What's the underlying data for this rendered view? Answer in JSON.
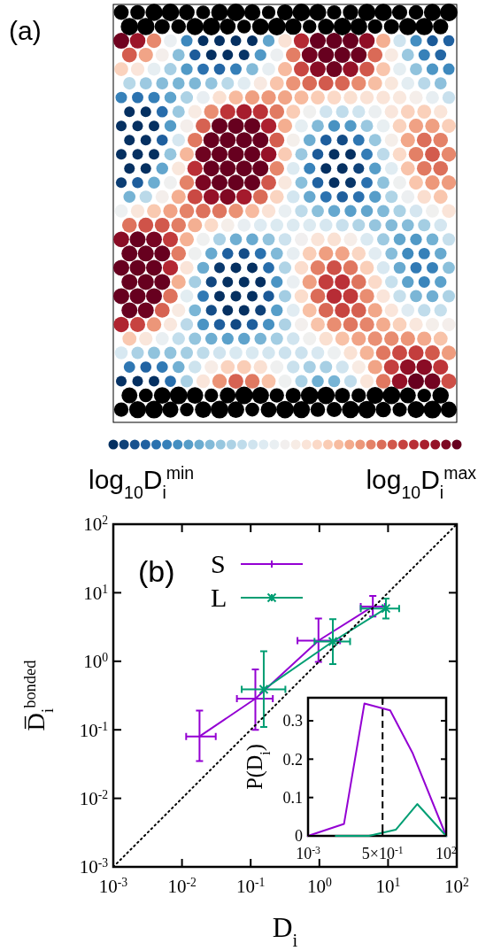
{
  "chart_data": [
    {
      "type": "other",
      "annotations": [
        "(a)",
        "log$_{10}$D$_{i}$$^{min}$",
        "log$_{10}$D$_{i}$$^{max}$"
      ]
    },
    {
      "type": "line",
      "xlabel": "D$_{i}$",
      "ylabel": "D̅$_{i}$$^{bonded}$",
      "log": "xy",
      "xlim": [
        0.001,
        100
      ],
      "ylim": [
        0.001,
        100
      ],
      "xticks": [
        {
          "value": 0.001,
          "label": "10$^{-3}$"
        },
        {
          "value": 0.01,
          "label": "10$^{-2}$"
        },
        {
          "value": 0.1,
          "label": "10$^{-1}$"
        },
        {
          "value": 1,
          "label": "10$^{0}$"
        },
        {
          "value": 10,
          "label": "10$^{1}$"
        },
        {
          "value": 100,
          "label": "10$^{2}$"
        }
      ],
      "yticks": [
        {
          "value": 0.001,
          "label": "10$^{-3}$"
        },
        {
          "value": 0.01,
          "label": "10$^{-2}$"
        },
        {
          "value": 0.1,
          "label": "10$^{-1}$"
        },
        {
          "value": 1,
          "label": "10$^{0}$"
        },
        {
          "value": 10,
          "label": "10$^{1}$"
        },
        {
          "value": 100,
          "label": "10$^{2}$"
        }
      ],
      "legend": "top left",
      "annotations": [
        "(b)"
      ],
      "series": [
        {
          "name": "S",
          "color": "#9400d3",
          "marker": "none",
          "x": [
            0.018,
            0.117,
            0.97,
            6.0
          ],
          "values": [
            0.08,
            0.285,
            2.0,
            6.3
          ],
          "errors": [
            [
              0.035,
              0.19
            ],
            [
              0.1,
              0.76
            ],
            [
              0.98,
              4.2
            ],
            [
              4.5,
              9.0
            ]
          ],
          "xerrors": [
            [
              0.0115,
              0.031
            ],
            [
              0.063,
              0.21
            ],
            [
              0.48,
              2.0
            ],
            [
              4.0,
              9.0
            ]
          ]
        },
        {
          "name": "L",
          "color": "#009e73",
          "marker": "cross",
          "x": [
            0.155,
            1.57,
            9.3
          ],
          "values": [
            0.39,
            1.94,
            5.9
          ],
          "errors": [
            [
              0.11,
              1.4
            ],
            [
              0.91,
              4.1
            ],
            [
              4.2,
              8.2
            ]
          ],
          "xerrors": [
            [
              0.074,
              0.32
            ],
            [
              0.85,
              2.8
            ],
            [
              4.0,
              14.5
            ]
          ]
        },
        {
          "type": "line",
          "color": "#000000",
          "line_style": "dotted",
          "marker": "none",
          "x": [
            0.001,
            100
          ],
          "values": [
            0.001,
            100
          ]
        }
      ]
    },
    {
      "type": "line",
      "ylabel": "P(D$_{i}$)",
      "log": "x",
      "xlim": [
        0.001,
        100
      ],
      "ylim": [
        0,
        0.36
      ],
      "xticks": [
        {
          "value": 0.001,
          "label": "10$^{-3}$"
        },
        {
          "value": 0.5,
          "label": "5×10$^{-1}$"
        },
        {
          "value": 100,
          "label": "10$^{2}$"
        }
      ],
      "yticks": [
        0,
        0.1,
        0.2,
        0.3
      ],
      "legend": false,
      "ref_lines": [
        {
          "axis": "x",
          "value": 0.5,
          "color": "#000000",
          "line_style": "dashed"
        }
      ],
      "series": [
        {
          "color": "#9400d3",
          "marker": "none",
          "x": [
            0.001,
            0.02,
            0.11,
            0.94,
            6.0,
            100
          ],
          "values": [
            0,
            0.031,
            0.345,
            0.327,
            0.217,
            0
          ]
        },
        {
          "color": "#009e73",
          "marker": "none",
          "x": [
            0.01,
            0.16,
            1.5,
            9,
            100
          ],
          "values": [
            0,
            0,
            0.016,
            0.083,
            0
          ]
        }
      ]
    }
  ]
}
